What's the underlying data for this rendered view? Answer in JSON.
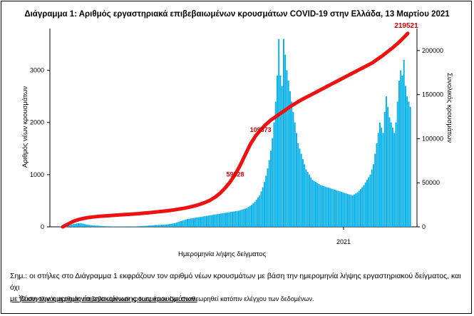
{
  "title": "Διάγραμμα 1: Αριθμός εργαστηριακά επιβεβαιωμένων κρουσμάτων COVID-19 στην Ελλάδα, 13 Μαρτίου 2021",
  "note_line1": "Σημ.: οι στήλες στο Διάγραμμα 1 εκφράζουν τον αριθμό νέων κρουσμάτων με βάση την ημερομηνία λήψης εργαστηριακού δείγματος, και όχι",
  "note_line2": "με βάση την ημερομηνία ανακοίνωσης των κρουσμάτων.",
  "footnote_mark": "1",
  "footnote": "Ο συνολικός αριθμός επιβεβαιωμένων κρουσμάτων έχει αναθεωρηθεί κατόπιν ελέγχου των δεδομένων.",
  "chart_data": {
    "type": "bar",
    "title": "Διάγραμμα 1: Αριθμός εργαστηριακά επιβεβαιωμένων κρουσμάτων COVID-19 στην Ελλάδα, 13 Μαρτίου 2021",
    "xlabel": "Ημερομηνία λήψης δείγματος",
    "ylabel": "Αριθμός νέων κρουσμάτων",
    "y2label": "Συνολικός κρουσμάτων",
    "ylim": [
      0,
      3800
    ],
    "y2lim": [
      0,
      225000
    ],
    "yticks": [
      0,
      1000,
      2000,
      3000
    ],
    "y2ticks": [
      0,
      50000,
      100000,
      150000,
      200000
    ],
    "x_ticks": [
      "2021"
    ],
    "colors": {
      "bars": "#00aee8",
      "cumulative": "#ee1111",
      "annotation": "#cc0000"
    },
    "annotations": [
      {
        "text": "219521",
        "series": "cumulative",
        "point": "last"
      },
      {
        "text": "109873",
        "series": "cumulative"
      },
      {
        "text": "59528",
        "series": "cumulative"
      }
    ],
    "series": [
      {
        "kind": "bar",
        "axis": "left",
        "values": [
          2,
          4,
          6,
          8,
          10,
          15,
          25,
          35,
          45,
          55,
          60,
          65,
          70,
          70,
          68,
          60,
          50,
          45,
          40,
          35,
          30,
          28,
          26,
          24,
          22,
          20,
          18,
          15,
          13,
          12,
          10,
          10,
          9,
          8,
          8,
          7,
          7,
          6,
          6,
          6,
          6,
          5,
          5,
          5,
          5,
          5,
          6,
          7,
          8,
          10,
          12,
          14,
          16,
          18,
          20,
          22,
          24,
          26,
          28,
          30,
          32,
          34,
          36,
          38,
          40,
          42,
          45,
          48,
          50,
          55,
          60,
          65,
          70,
          80,
          90,
          100,
          110,
          120,
          130,
          140,
          150,
          155,
          160,
          165,
          170,
          175,
          180,
          185,
          190,
          195,
          200,
          205,
          210,
          215,
          220,
          225,
          230,
          235,
          240,
          245,
          250,
          255,
          260,
          265,
          270,
          275,
          280,
          285,
          290,
          295,
          300,
          305,
          310,
          320,
          330,
          340,
          350,
          360,
          380,
          400,
          420,
          450,
          480,
          520,
          560,
          600,
          680,
          760,
          860,
          980,
          1120,
          1280,
          1460,
          1700,
          2000,
          2400,
          2900,
          3600,
          2900,
          2700,
          3600,
          3300,
          3000,
          2800,
          2600,
          2400,
          2200,
          2000,
          1800,
          1600,
          1500,
          1400,
          1300,
          1200,
          1100,
          1050,
          1000,
          950,
          900,
          880,
          860,
          840,
          820,
          800,
          790,
          780,
          770,
          760,
          750,
          740,
          730,
          720,
          710,
          700,
          690,
          680,
          670,
          660,
          650,
          640,
          630,
          620,
          610,
          600,
          620,
          640,
          660,
          690,
          720,
          760,
          800,
          850,
          900,
          950,
          1000,
          1100,
          1200,
          1400,
          1600,
          1800,
          2000,
          1900,
          1800,
          2200,
          2500,
          2300,
          2100,
          2000,
          1900,
          1800,
          2000,
          2400,
          2800,
          3000,
          2900,
          3200,
          2700,
          2500,
          2400,
          2300
        ]
      },
      {
        "kind": "line",
        "axis": "right",
        "name": "",
        "values": [
          0,
          3000,
          6000,
          8000,
          9500,
          10500,
          11200,
          11800,
          12200,
          12600,
          13000,
          13400,
          13800,
          14200,
          14600,
          15000,
          15500,
          16000,
          16600,
          17200,
          17800,
          18500,
          19300,
          20200,
          21200,
          22400,
          23800,
          25500,
          27500,
          30000,
          33500,
          38000,
          44000,
          51000,
          59528,
          70000,
          82000,
          94000,
          103000,
          109873,
          116000,
          121000,
          125000,
          129000,
          133000,
          137000,
          140500,
          144000,
          147000,
          150000,
          153000,
          156000,
          159000,
          162000,
          165000,
          168000,
          171000,
          174000,
          177000,
          180000,
          183000,
          186000,
          190000,
          194000,
          198500,
          203000,
          208000,
          213500,
          219521
        ]
      }
    ]
  }
}
